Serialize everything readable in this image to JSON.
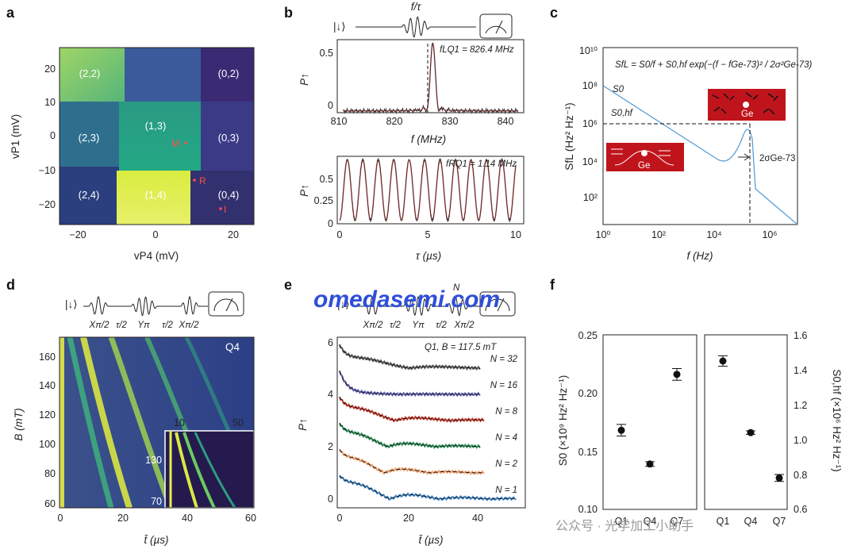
{
  "panels": {
    "a": {
      "label": "a",
      "xlabel": "vP4 (mV)",
      "ylabel": "vP1 (mV)",
      "xticks": [
        "−20",
        "0",
        "20"
      ],
      "yticks": [
        "20",
        "10",
        "0",
        "−10",
        "−20"
      ],
      "regions": [
        "(2,2)",
        "(0,2)",
        "(1,3)",
        "(2,3)",
        "(0,3)",
        "(2,4)",
        "(1,4)",
        "(0,4)"
      ],
      "points": [
        "M",
        "R",
        "I"
      ]
    },
    "b": {
      "label": "b",
      "pulse_label": "f/τ",
      "spin_label": "|↓⟩",
      "top": {
        "ylabel": "P↑",
        "xlabel": "f (MHz)",
        "xticks": [
          "810",
          "820",
          "830",
          "840"
        ],
        "yticks": [
          "0.5",
          "0"
        ],
        "annotation": "fLQ1 = 826.4 MHz"
      },
      "bottom": {
        "ylabel": "P↑",
        "xlabel": "τ (µs)",
        "xticks": [
          "0",
          "5",
          "10"
        ],
        "yticks": [
          "0.5",
          "0.25",
          "0"
        ],
        "annotation": "fRQ1 = 1.14 MHz"
      }
    },
    "c": {
      "label": "c",
      "ylabel": "SfL (Hz² Hz⁻¹)",
      "xlabel": "f (Hz)",
      "xticks": [
        "10⁰",
        "10²",
        "10⁴",
        "10⁶"
      ],
      "yticks": [
        "10¹⁰",
        "10⁸",
        "10⁶",
        "10⁴",
        "10²"
      ],
      "formula": "SfL = S0/f + S0,hf exp(−(f − fGe-73)² / 2σ²Ge-73)",
      "labels": {
        "s0": "S0",
        "s0hf": "S0,hf",
        "sigma": "2σGe-73",
        "ge": "Ge"
      }
    },
    "d": {
      "label": "d",
      "ylabel": "B (mT)",
      "xlabel": "t̄ (µs)",
      "xticks": [
        "0",
        "20",
        "40",
        "60"
      ],
      "yticks": [
        "160",
        "140",
        "120",
        "100",
        "80",
        "60"
      ],
      "tag": "Q4",
      "pulse_labels": [
        "Xπ/2",
        "τ/2",
        "Yπ",
        "τ/2",
        "Xπ/2"
      ],
      "spin_label": "|↓⟩",
      "inset": {
        "xticks": [
          "10",
          "50"
        ],
        "yticks": [
          "130",
          "70"
        ]
      }
    },
    "e": {
      "label": "e",
      "ylabel": "P↑",
      "xlabel": "t̄ (µs)",
      "xticks": [
        "0",
        "20",
        "40"
      ],
      "yticks": [
        "6",
        "4",
        "2",
        "0"
      ],
      "title": "Q1, B = 117.5 mT",
      "pulse_labels": [
        "Xπ/2",
        "τ/2",
        "Yπ",
        "τ/2",
        "Xπ/2"
      ],
      "pulse_N": "N",
      "spin_label": "|↓⟩",
      "traces": [
        {
          "name": "N = 32",
          "color": "#555555"
        },
        {
          "name": "N = 16",
          "color": "#5b5ba8"
        },
        {
          "name": "N = 8",
          "color": "#c0392b"
        },
        {
          "name": "N = 4",
          "color": "#2e8b57"
        },
        {
          "name": "N = 2",
          "color": "#f0a070"
        },
        {
          "name": "N = 1",
          "color": "#3a7fc2"
        }
      ]
    },
    "f": {
      "label": "f",
      "ylabel_left": "S0 (×10⁹ Hz² Hz⁻¹)",
      "ylabel_right": "S0,hf (×10⁶ Hz² Hz⁻¹)",
      "yticks_left": [
        "0.25",
        "0.20",
        "0.15",
        "0.10"
      ],
      "yticks_right": [
        "1.6",
        "1.4",
        "1.2",
        "1.0",
        "0.8",
        "0.6"
      ],
      "categories": [
        "Q1",
        "Q4",
        "Q7"
      ]
    }
  },
  "chart_data": [
    {
      "type": "scatter",
      "panel": "f-left",
      "categories": [
        "Q1",
        "Q4",
        "Q7"
      ],
      "series": [
        {
          "values": [
            0.168,
            0.139,
            0.216
          ],
          "errors": [
            0.005,
            0.002,
            0.005
          ]
        }
      ],
      "ylabel": "S0 (×10⁹ Hz² Hz⁻¹)",
      "ylim": [
        0.1,
        0.25
      ]
    },
    {
      "type": "scatter",
      "panel": "f-right",
      "categories": [
        "Q1",
        "Q4",
        "Q7"
      ],
      "series": [
        {
          "values": [
            1.45,
            1.04,
            0.78
          ],
          "errors": [
            0.03,
            0.01,
            0.02
          ]
        }
      ],
      "ylabel": "S0,hf (×10⁶ Hz² Hz⁻¹)",
      "ylim": [
        0.6,
        1.6
      ]
    },
    {
      "type": "line",
      "panel": "b-top",
      "xlabel": "f (MHz)",
      "ylabel": "P↑",
      "xlim": [
        810,
        842
      ],
      "ylim": [
        0,
        0.6
      ],
      "peak": {
        "x": 826.4,
        "y": 0.56
      }
    },
    {
      "type": "line",
      "panel": "b-bottom",
      "xlabel": "τ (µs)",
      "ylabel": "P↑",
      "xlim": [
        0,
        10
      ],
      "ylim": [
        0,
        0.6
      ],
      "frequency_MHz": 1.14
    }
  ],
  "watermark": {
    "main": "omedasemi.com",
    "wechat": "公众号 · 光学加工小助手"
  }
}
